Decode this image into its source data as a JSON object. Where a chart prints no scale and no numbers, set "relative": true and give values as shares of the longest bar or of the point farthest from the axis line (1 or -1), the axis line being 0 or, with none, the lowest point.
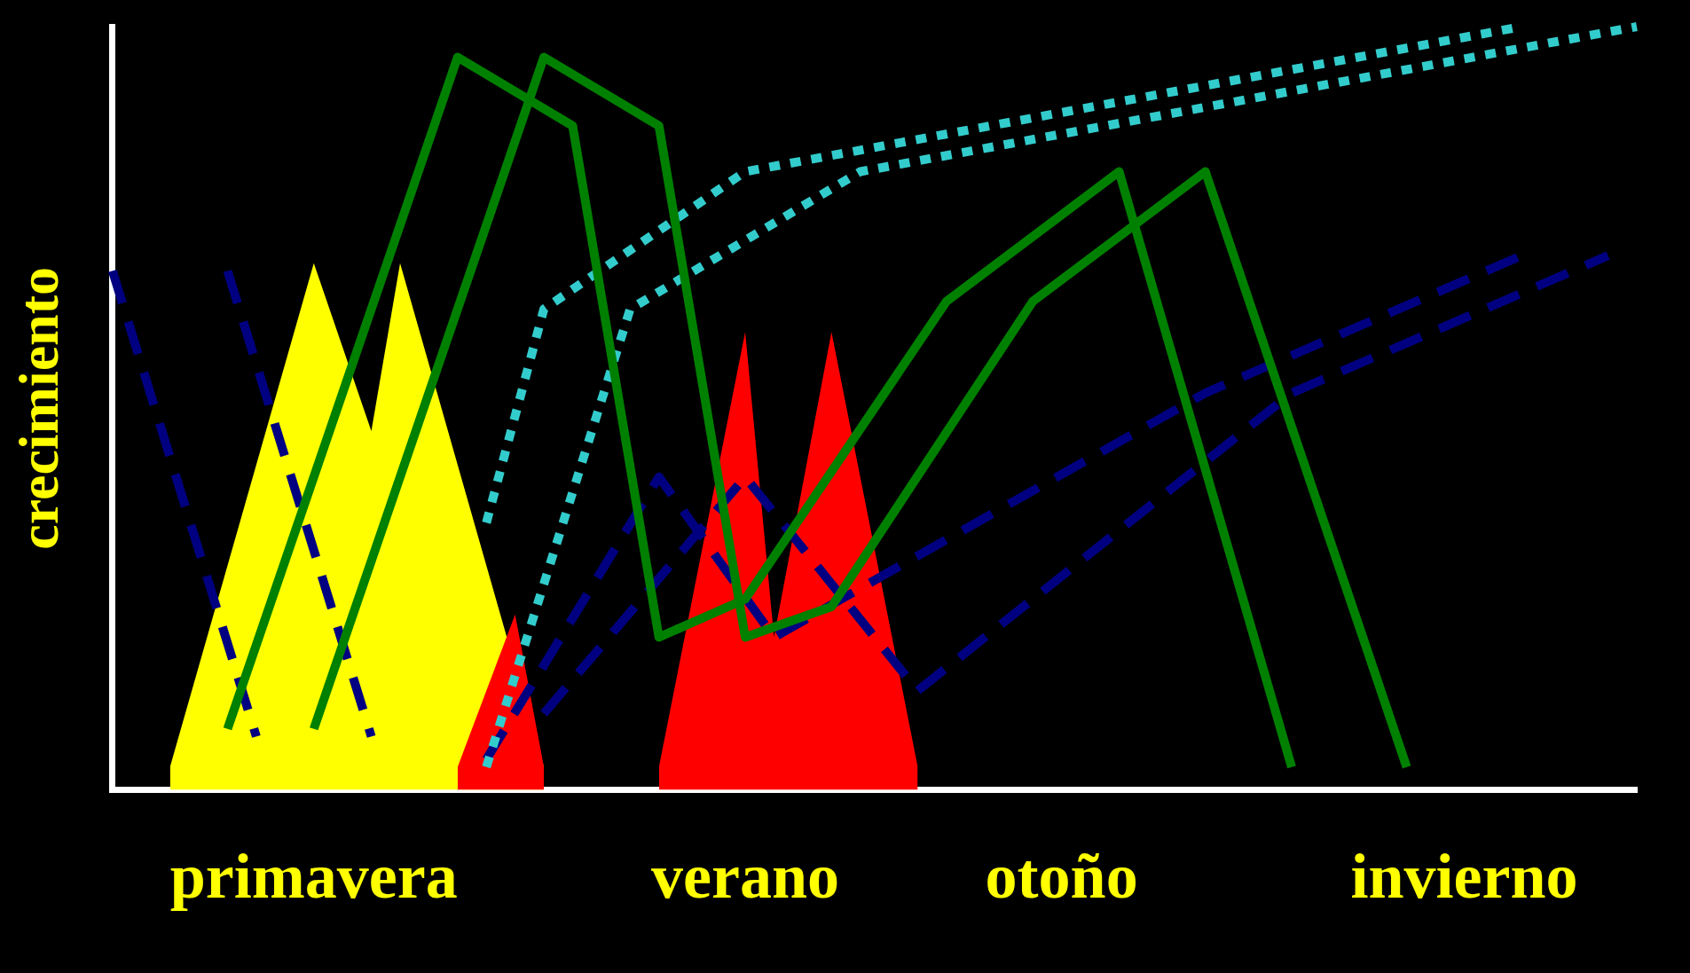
{
  "chart_data": {
    "type": "line",
    "relative": true,
    "ylabel": "crecimiento",
    "categories": [
      null,
      null,
      null,
      null,
      null,
      null,
      null,
      "primavera",
      null,
      null,
      null,
      null,
      null,
      null,
      null,
      null,
      null,
      null,
      null,
      null,
      null,
      null,
      "verano",
      null,
      null,
      null,
      null,
      null,
      null,
      null,
      null,
      null,
      null,
      "otoño",
      null,
      null,
      null,
      null,
      null,
      null,
      null,
      null,
      null,
      null,
      null,
      null,
      null,
      "invierno",
      null,
      null,
      null,
      null,
      null,
      null
    ],
    "grid": false,
    "legend": false,
    "marker": "none",
    "series": [
      {
        "color": "#008000",
        "line_style": "solid",
        "values": [
          null,
          null,
          null,
          null,
          0.08,
          null,
          null,
          null,
          null,
          null,
          null,
          null,
          0.96,
          null,
          null,
          null,
          0.87,
          null,
          null,
          0.2,
          null,
          null,
          0.25,
          null,
          null,
          null,
          null,
          null,
          null,
          0.64,
          null,
          null,
          null,
          null,
          null,
          0.81,
          null,
          null,
          null,
          null,
          null,
          0.03,
          null,
          null,
          null,
          null,
          null,
          null,
          null,
          null,
          null,
          null,
          null,
          null
        ]
      },
      {
        "color": "#008000",
        "line_style": "solid",
        "values": [
          null,
          null,
          null,
          null,
          null,
          null,
          null,
          0.08,
          null,
          null,
          null,
          null,
          null,
          null,
          null,
          0.96,
          null,
          null,
          null,
          0.87,
          null,
          null,
          0.2,
          null,
          null,
          0.24,
          null,
          null,
          null,
          null,
          null,
          null,
          0.64,
          null,
          null,
          null,
          null,
          null,
          0.81,
          null,
          null,
          null,
          null,
          null,
          null,
          0.03,
          null,
          null,
          null,
          null,
          null,
          null,
          null,
          null
        ]
      },
      {
        "color": "#33cccc",
        "line_style": "dotted",
        "values": [
          null,
          null,
          null,
          null,
          null,
          null,
          null,
          null,
          null,
          null,
          null,
          null,
          null,
          0.35,
          null,
          0.63,
          null,
          null,
          null,
          null,
          null,
          null,
          0.81,
          null,
          null,
          null,
          null,
          null,
          null,
          null,
          null,
          null,
          null,
          null,
          null,
          null,
          null,
          null,
          null,
          null,
          null,
          null,
          null,
          null,
          null,
          null,
          null,
          null,
          null,
          1,
          null,
          null,
          null,
          null
        ]
      },
      {
        "color": "#33cccc",
        "line_style": "dotted",
        "values": [
          null,
          null,
          null,
          null,
          null,
          null,
          null,
          null,
          null,
          null,
          null,
          null,
          null,
          0.03,
          null,
          null,
          null,
          null,
          0.63,
          null,
          null,
          null,
          null,
          null,
          null,
          null,
          0.81,
          null,
          null,
          null,
          null,
          null,
          null,
          null,
          null,
          null,
          null,
          null,
          null,
          null,
          null,
          null,
          null,
          null,
          null,
          null,
          null,
          null,
          null,
          null,
          null,
          null,
          null,
          1
        ]
      },
      {
        "color": "#000080",
        "line_style": "dashed",
        "values": [
          0.68,
          null,
          null,
          null,
          null,
          0.07,
          null,
          null,
          null,
          null,
          null,
          null,
          null,
          null,
          null,
          null,
          null,
          null,
          null,
          null,
          null,
          null,
          null,
          null,
          null,
          null,
          null,
          null,
          null,
          null,
          null,
          null,
          null,
          null,
          null,
          null,
          null,
          null,
          null,
          null,
          null,
          null,
          null,
          null,
          null,
          null,
          null,
          null,
          null,
          null,
          null,
          null,
          null,
          null
        ]
      },
      {
        "color": "#000080",
        "line_style": "dashed",
        "values": [
          null,
          null,
          null,
          null,
          0.68,
          null,
          null,
          null,
          null,
          0.07,
          null,
          null,
          null,
          null,
          null,
          null,
          null,
          null,
          null,
          null,
          null,
          null,
          null,
          null,
          null,
          null,
          null,
          null,
          null,
          null,
          null,
          null,
          null,
          null,
          null,
          null,
          null,
          null,
          null,
          null,
          null,
          null,
          null,
          null,
          null,
          null,
          null,
          null,
          null,
          null,
          null,
          null,
          null,
          null
        ]
      },
      {
        "color": "#000080",
        "line_style": "dashed",
        "values": [
          null,
          null,
          null,
          null,
          null,
          null,
          null,
          null,
          null,
          null,
          null,
          null,
          null,
          0.04,
          null,
          null,
          null,
          null,
          null,
          0.41,
          null,
          null,
          null,
          0.2,
          null,
          null,
          null,
          null,
          null,
          null,
          null,
          null,
          null,
          null,
          null,
          null,
          null,
          null,
          0.52,
          null,
          null,
          null,
          null,
          null,
          null,
          null,
          null,
          null,
          null,
          0.7,
          null,
          null,
          null,
          null
        ]
      },
      {
        "color": "#000080",
        "line_style": "dashed",
        "values": [
          null,
          null,
          null,
          null,
          null,
          null,
          null,
          null,
          null,
          null,
          null,
          null,
          null,
          null,
          null,
          0.1,
          null,
          null,
          null,
          null,
          null,
          null,
          0.41,
          null,
          null,
          null,
          null,
          null,
          0.13,
          null,
          null,
          null,
          null,
          null,
          null,
          null,
          null,
          null,
          null,
          null,
          null,
          0.52,
          null,
          null,
          null,
          null,
          null,
          null,
          null,
          null,
          null,
          null,
          0.7,
          null
        ]
      },
      {
        "type": "area",
        "color": "#ff0000",
        "values": [
          null,
          null,
          null,
          null,
          null,
          null,
          null,
          null,
          null,
          null,
          null,
          null,
          0.03,
          null,
          0.23,
          0.03,
          null,
          null,
          null,
          null,
          null,
          null,
          null,
          null,
          null,
          null,
          null,
          null,
          null,
          null,
          null,
          null,
          null,
          null,
          null,
          null,
          null,
          null,
          null,
          null,
          null,
          null,
          null,
          null,
          null,
          null,
          null,
          null,
          null,
          null,
          null,
          null,
          null,
          null
        ]
      },
      {
        "type": "area",
        "color": "#ffff00",
        "values": [
          null,
          null,
          0.03,
          null,
          null,
          null,
          null,
          0.69,
          null,
          0.47,
          0.69,
          null,
          null,
          null,
          null,
          0.03,
          null,
          null,
          null,
          null,
          null,
          null,
          null,
          null,
          null,
          null,
          null,
          null,
          null,
          null,
          null,
          null,
          null,
          null,
          null,
          null,
          null,
          null,
          null,
          null,
          null,
          null,
          null,
          null,
          null,
          null,
          null,
          null,
          null,
          null,
          null,
          null,
          null,
          null
        ]
      },
      {
        "type": "area",
        "color": "#ff0000",
        "values": [
          null,
          null,
          null,
          null,
          null,
          null,
          null,
          null,
          null,
          null,
          null,
          null,
          null,
          null,
          null,
          null,
          null,
          null,
          null,
          0.03,
          null,
          null,
          0.6,
          0.2,
          null,
          0.6,
          null,
          null,
          0.03,
          null,
          null,
          null,
          null,
          null,
          null,
          null,
          null,
          null,
          null,
          null,
          null,
          null,
          null,
          null,
          null,
          null,
          null,
          null,
          null,
          null,
          null,
          null,
          null,
          null
        ]
      }
    ]
  }
}
